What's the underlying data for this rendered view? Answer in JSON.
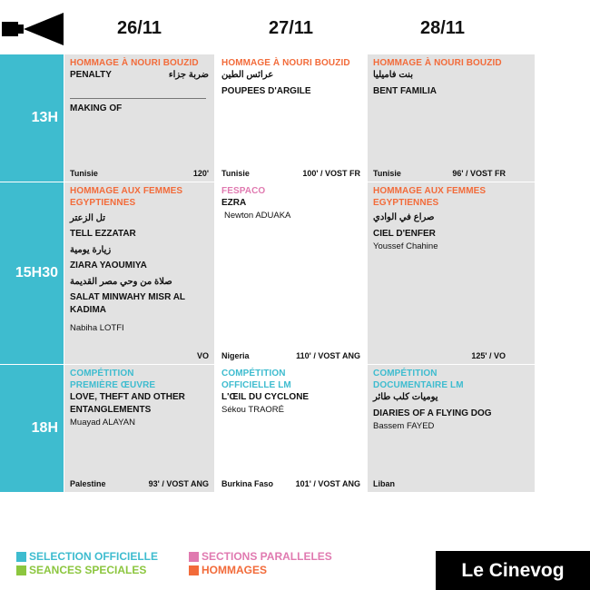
{
  "dates": [
    "26/11",
    "27/11",
    "28/11"
  ],
  "times": [
    "13H",
    "15H30",
    "18H"
  ],
  "cells": {
    "r1c1": {
      "section": "HOMMAGE À NOURI BOUZID",
      "title": "PENALTY",
      "title_ar": "ضربة جزاء",
      "title2": "MAKING OF",
      "country": "Tunisie",
      "duration": "120'"
    },
    "r1c2": {
      "section": "HOMMAGE À NOURI BOUZID",
      "title_ar": "عرائس الطين",
      "title": "POUPEES D'ARGILE",
      "country": "Tunisie",
      "duration": "100' / VOST FR"
    },
    "r1c3": {
      "section": "HOMMAGE À NOURI BOUZID",
      "title_ar": "بنت فاميليا",
      "title": "BENT FAMILIA",
      "country": "Tunisie",
      "duration": "96' / VOST FR"
    },
    "r2c1": {
      "section_1": "HOMMAGE AUX FEMMES",
      "section_2": "EGYPTIENNES",
      "ar_1": "تل الزعتر",
      "title_1": "TELL EZZATAR",
      "ar_2": "زيارة يومية",
      "title_2": "ZIARA YAOUMIYA",
      "ar_3": "صلاة من وحي مصر القديمة",
      "title_3a": "SALAT MINWAHY MISR AL",
      "title_3b": "KADIMA",
      "director": "Nabiha LOTFI",
      "duration": "VO"
    },
    "r2c2": {
      "section": "FESPACO",
      "title": "EZRA",
      "director": "Newton ADUAKA",
      "country": "Nigeria",
      "duration": "110' / VOST ANG"
    },
    "r2c3": {
      "section_1": "HOMMAGE AUX FEMMES",
      "section_2": "EGYPTIENNES",
      "title_ar": "صراع في الوادي",
      "title": "CIEL D'ENFER",
      "director": "Youssef Chahine",
      "duration": "125' / VO"
    },
    "r3c1": {
      "section_1": "COMPÉTITION",
      "section_2": "PREMIÈRE ŒUVRE",
      "title_1": "LOVE, THEFT AND OTHER",
      "title_2": "ENTANGLEMENTS",
      "director": "Muayad ALAYAN",
      "country": "Palestine",
      "duration": "93' / VOST ANG"
    },
    "r3c2": {
      "section_1": "COMPÉTITION",
      "section_2": "OFFICIELLE LM",
      "title": "L'ŒIL DU CYCLONE",
      "director": "Sékou TRAORÉ",
      "country": "Burkina Faso",
      "duration": "101' / VOST ANG"
    },
    "r3c3": {
      "section_1": "COMPÉTITION",
      "section_2": "DOCUMENTAIRE LM",
      "title_ar": "يوميات كلب طائر",
      "title": "DIARIES OF A FLYING DOG",
      "director": "Bassem FAYED",
      "country": "Liban"
    }
  },
  "legend": {
    "selection": "SELECTION OFFICIELLE",
    "speciales": "SEANCES SPECIALES",
    "paralleles": "SECTIONS PARALLELES",
    "hommages": "HOMMAGES"
  },
  "colors": {
    "selection": "#3ebccf",
    "speciales": "#8cc63f",
    "paralleles": "#e07ab0",
    "hommages": "#f26b3a"
  },
  "brand": "Le Cinevog",
  "icons": {
    "header": "film-camera-icon"
  }
}
